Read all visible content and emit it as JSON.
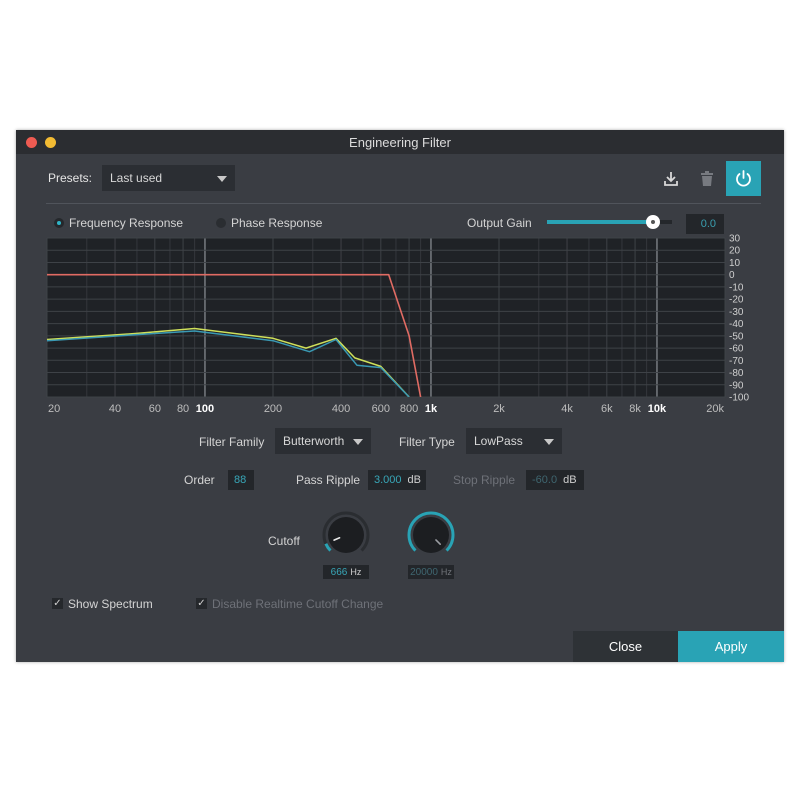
{
  "window": {
    "title": "Engineering Filter"
  },
  "presets": {
    "label": "Presets:",
    "value": "Last used"
  },
  "toolbar": {
    "download_icon": "download-icon",
    "trash_icon": "trash-icon",
    "power_icon": "power-icon",
    "accent": "#29a3b5"
  },
  "view": {
    "frequency_label": "Frequency Response",
    "phase_label": "Phase Response"
  },
  "output_gain": {
    "label": "Output Gain",
    "value": "0.0",
    "level": 0.85
  },
  "chart_data": {
    "type": "line",
    "x_ticks": [
      "20",
      "40",
      "60",
      "80",
      "100",
      "200",
      "400",
      "600",
      "800",
      "1k",
      "2k",
      "4k",
      "6k",
      "8k",
      "10k",
      "20k"
    ],
    "x_tick_values": [
      20,
      40,
      60,
      80,
      100,
      200,
      400,
      600,
      800,
      1000,
      2000,
      4000,
      6000,
      8000,
      10000,
      20000
    ],
    "y_ticks": [
      "30",
      "20",
      "10",
      "0",
      "-10",
      "-20",
      "-30",
      "-40",
      "-50",
      "-60",
      "-70",
      "-80",
      "-90",
      "-100"
    ],
    "xlim": [
      20,
      20000
    ],
    "ylim": [
      -100,
      30
    ],
    "x_scale": "log",
    "grid": true,
    "series": [
      {
        "color": "#e06b63",
        "x": [
          20,
          650,
          800,
          900
        ],
        "y": [
          0,
          0,
          -50,
          -100
        ]
      },
      {
        "color": "#cfe05a",
        "x": [
          20,
          50,
          90,
          200,
          280,
          380,
          460,
          600,
          800
        ],
        "y": [
          -53,
          -48,
          -44,
          -52,
          -60,
          -52,
          -68,
          -75,
          -100
        ]
      },
      {
        "color": "#3a99b3",
        "x": [
          20,
          50,
          90,
          200,
          290,
          380,
          470,
          600,
          800
        ],
        "y": [
          -54,
          -49,
          -46,
          -54,
          -63,
          -53,
          -74,
          -76,
          -100
        ]
      }
    ]
  },
  "filter": {
    "family_label": "Filter Family",
    "family_value": "Butterworth",
    "type_label": "Filter Type",
    "type_value": "LowPass",
    "order_label": "Order",
    "order_value": "88",
    "pass_ripple_label": "Pass Ripple",
    "pass_ripple_value": "3.000",
    "pass_ripple_unit": "dB",
    "stop_ripple_label": "Stop Ripple",
    "stop_ripple_value": "-60.0",
    "stop_ripple_unit": "dB"
  },
  "cutoff": {
    "label": "Cutoff",
    "knob1_value": "666",
    "knob1_unit": "Hz",
    "knob1_level": 0.08,
    "knob2_value": "20000",
    "knob2_unit": "Hz",
    "knob2_level": 1.0
  },
  "options": {
    "show_spectrum": "Show Spectrum",
    "disable_realtime": "Disable Realtime Cutoff Change"
  },
  "buttons": {
    "close": "Close",
    "apply": "Apply"
  }
}
